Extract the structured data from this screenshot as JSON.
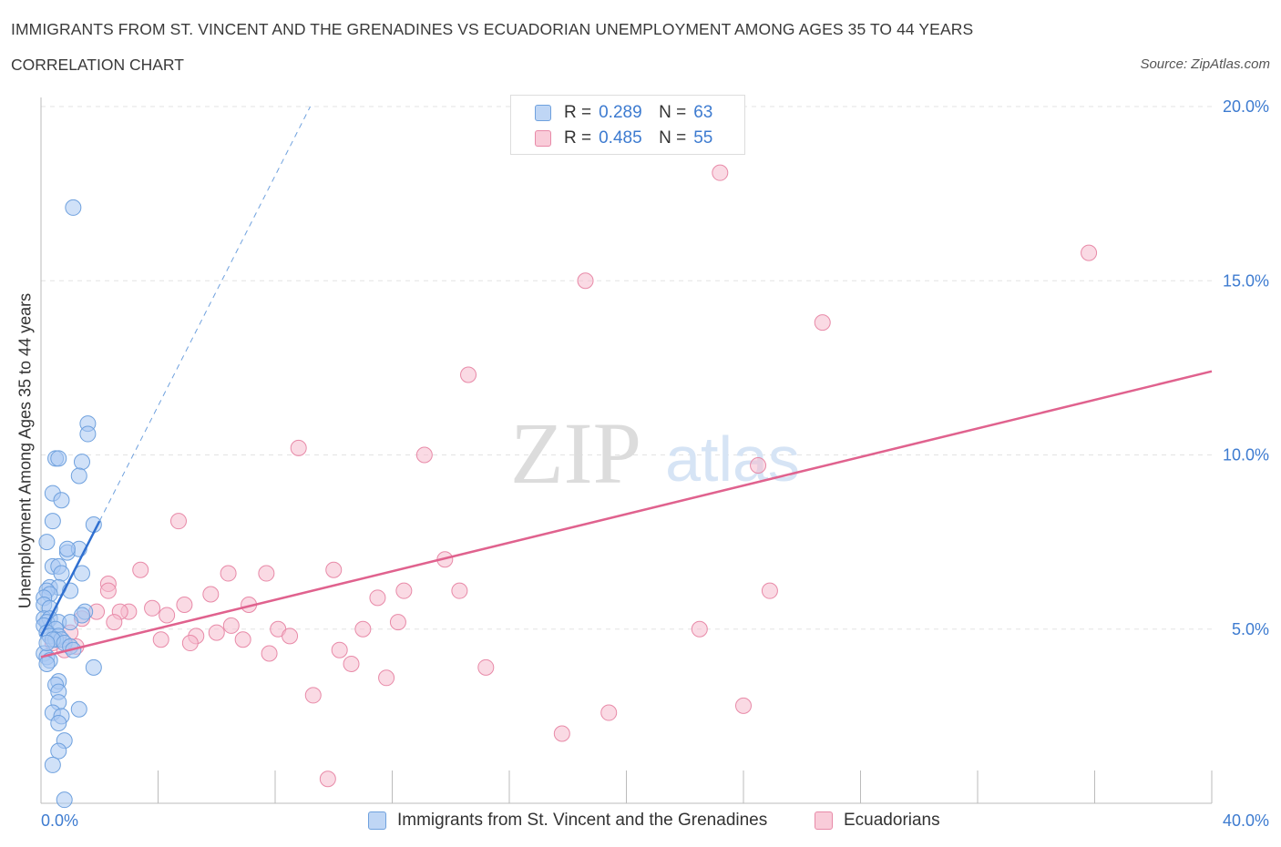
{
  "title": "IMMIGRANTS FROM ST. VINCENT AND THE GRENADINES VS ECUADORIAN UNEMPLOYMENT AMONG AGES 35 TO 44 YEARS",
  "subtitle": "CORRELATION CHART",
  "source": "Source: ZipAtlas.com",
  "watermark": {
    "zip": "ZIP",
    "atlas": "atlas"
  },
  "legend": {
    "rows": [
      {
        "r_label": "R =",
        "r_value": "0.289",
        "n_label": "N =",
        "n_value": "63",
        "color": "#a9c9f2"
      },
      {
        "r_label": "R =",
        "r_value": "0.485",
        "n_label": "N =",
        "n_value": "55",
        "color": "#f6bccd"
      }
    ]
  },
  "bottom_legend": [
    {
      "label": "Immigrants from St. Vincent and the Grenadines",
      "color": "#a9c9f2"
    },
    {
      "label": "Ecuadorians",
      "color": "#f6bccd"
    }
  ],
  "axes": {
    "ylabel": "Unemployment Among Ages 35 to 44 years",
    "x_min_label": "0.0%",
    "x_max_label": "40.0%",
    "y_tick_labels": [
      "5.0%",
      "10.0%",
      "15.0%",
      "20.0%"
    ]
  },
  "colors": {
    "blue_fill": "#a9c9f2",
    "blue_stroke": "#6fa1de",
    "blue_line": "#2f6fd0",
    "pink_fill": "#f6bccd",
    "pink_stroke": "#e88aa8",
    "pink_line": "#e0628e",
    "tick_label": "#3d7bd0",
    "grid": "#e3e3e3"
  },
  "chart_data": {
    "type": "scatter",
    "xlim": [
      0,
      40
    ],
    "ylim": [
      0,
      20
    ],
    "y_ticks": [
      5,
      10,
      15,
      20
    ],
    "grid": "horizontal dashed",
    "series": [
      {
        "name": "Immigrants from St. Vincent and the Grenadines",
        "points": [
          [
            1.1,
            17.1
          ],
          [
            1.6,
            10.9
          ],
          [
            1.6,
            10.6
          ],
          [
            0.5,
            9.9
          ],
          [
            0.6,
            9.9
          ],
          [
            1.4,
            9.8
          ],
          [
            1.3,
            9.4
          ],
          [
            0.4,
            8.9
          ],
          [
            0.7,
            8.7
          ],
          [
            0.4,
            8.1
          ],
          [
            1.8,
            8.0
          ],
          [
            0.2,
            7.5
          ],
          [
            0.4,
            6.8
          ],
          [
            0.6,
            6.8
          ],
          [
            0.9,
            7.2
          ],
          [
            1.3,
            7.3
          ],
          [
            0.9,
            7.3
          ],
          [
            0.7,
            6.6
          ],
          [
            1.4,
            6.6
          ],
          [
            0.3,
            6.2
          ],
          [
            0.6,
            6.2
          ],
          [
            0.2,
            6.1
          ],
          [
            1.0,
            6.1
          ],
          [
            0.3,
            6.0
          ],
          [
            0.1,
            5.9
          ],
          [
            0.1,
            5.7
          ],
          [
            0.3,
            5.6
          ],
          [
            1.5,
            5.5
          ],
          [
            1.4,
            5.4
          ],
          [
            0.1,
            5.3
          ],
          [
            0.3,
            5.3
          ],
          [
            0.2,
            5.2
          ],
          [
            0.6,
            5.2
          ],
          [
            1.0,
            5.2
          ],
          [
            0.1,
            5.1
          ],
          [
            0.5,
            5.0
          ],
          [
            0.2,
            4.9
          ],
          [
            0.3,
            4.8
          ],
          [
            0.6,
            4.8
          ],
          [
            0.5,
            4.7
          ],
          [
            0.7,
            4.7
          ],
          [
            0.4,
            4.7
          ],
          [
            0.8,
            4.6
          ],
          [
            1.0,
            4.5
          ],
          [
            1.1,
            4.4
          ],
          [
            0.1,
            4.3
          ],
          [
            0.2,
            4.2
          ],
          [
            0.3,
            4.1
          ],
          [
            0.2,
            4.0
          ],
          [
            1.8,
            3.9
          ],
          [
            0.6,
            3.5
          ],
          [
            0.5,
            3.4
          ],
          [
            0.6,
            3.2
          ],
          [
            0.6,
            2.9
          ],
          [
            1.3,
            2.7
          ],
          [
            0.4,
            2.6
          ],
          [
            0.7,
            2.5
          ],
          [
            0.6,
            2.3
          ],
          [
            0.8,
            1.8
          ],
          [
            0.6,
            1.5
          ],
          [
            0.4,
            1.1
          ],
          [
            0.8,
            0.1
          ],
          [
            0.2,
            4.6
          ]
        ]
      },
      {
        "name": "Ecuadorians",
        "points": [
          [
            23.2,
            18.1
          ],
          [
            35.8,
            15.8
          ],
          [
            18.6,
            15.0
          ],
          [
            26.7,
            13.8
          ],
          [
            14.6,
            12.3
          ],
          [
            8.8,
            10.2
          ],
          [
            13.1,
            10.0
          ],
          [
            24.5,
            9.7
          ],
          [
            4.7,
            8.1
          ],
          [
            13.8,
            7.0
          ],
          [
            10.0,
            6.7
          ],
          [
            3.4,
            6.7
          ],
          [
            6.4,
            6.6
          ],
          [
            7.7,
            6.6
          ],
          [
            2.3,
            6.3
          ],
          [
            2.3,
            6.1
          ],
          [
            5.8,
            6.0
          ],
          [
            12.4,
            6.1
          ],
          [
            14.3,
            6.1
          ],
          [
            24.9,
            6.1
          ],
          [
            11.5,
            5.9
          ],
          [
            7.1,
            5.7
          ],
          [
            4.9,
            5.7
          ],
          [
            3.8,
            5.6
          ],
          [
            3.0,
            5.5
          ],
          [
            1.9,
            5.5
          ],
          [
            2.7,
            5.5
          ],
          [
            4.3,
            5.4
          ],
          [
            1.4,
            5.3
          ],
          [
            2.5,
            5.2
          ],
          [
            12.2,
            5.2
          ],
          [
            6.5,
            5.1
          ],
          [
            8.1,
            5.0
          ],
          [
            11.0,
            5.0
          ],
          [
            22.5,
            5.0
          ],
          [
            6.0,
            4.9
          ],
          [
            8.5,
            4.8
          ],
          [
            5.3,
            4.8
          ],
          [
            4.1,
            4.7
          ],
          [
            6.9,
            4.7
          ],
          [
            5.1,
            4.6
          ],
          [
            1.0,
            4.9
          ],
          [
            0.8,
            4.4
          ],
          [
            1.2,
            4.5
          ],
          [
            0.4,
            4.6
          ],
          [
            7.8,
            4.3
          ],
          [
            10.2,
            4.4
          ],
          [
            10.6,
            4.0
          ],
          [
            15.2,
            3.9
          ],
          [
            11.8,
            3.6
          ],
          [
            9.3,
            3.1
          ],
          [
            24.0,
            2.8
          ],
          [
            19.4,
            2.6
          ],
          [
            17.8,
            2.0
          ],
          [
            9.8,
            0.7
          ]
        ]
      }
    ],
    "trendlines": [
      {
        "series": "Immigrants from St. Vincent and the Grenadines",
        "x": [
          0,
          2.0
        ],
        "y": [
          4.8,
          8.1
        ],
        "extension": {
          "x": [
            2.0,
            9.2
          ],
          "y": [
            8.1,
            20.0
          ]
        }
      },
      {
        "series": "Ecuadorians",
        "x": [
          0,
          40
        ],
        "y": [
          4.2,
          12.4
        ]
      }
    ]
  }
}
